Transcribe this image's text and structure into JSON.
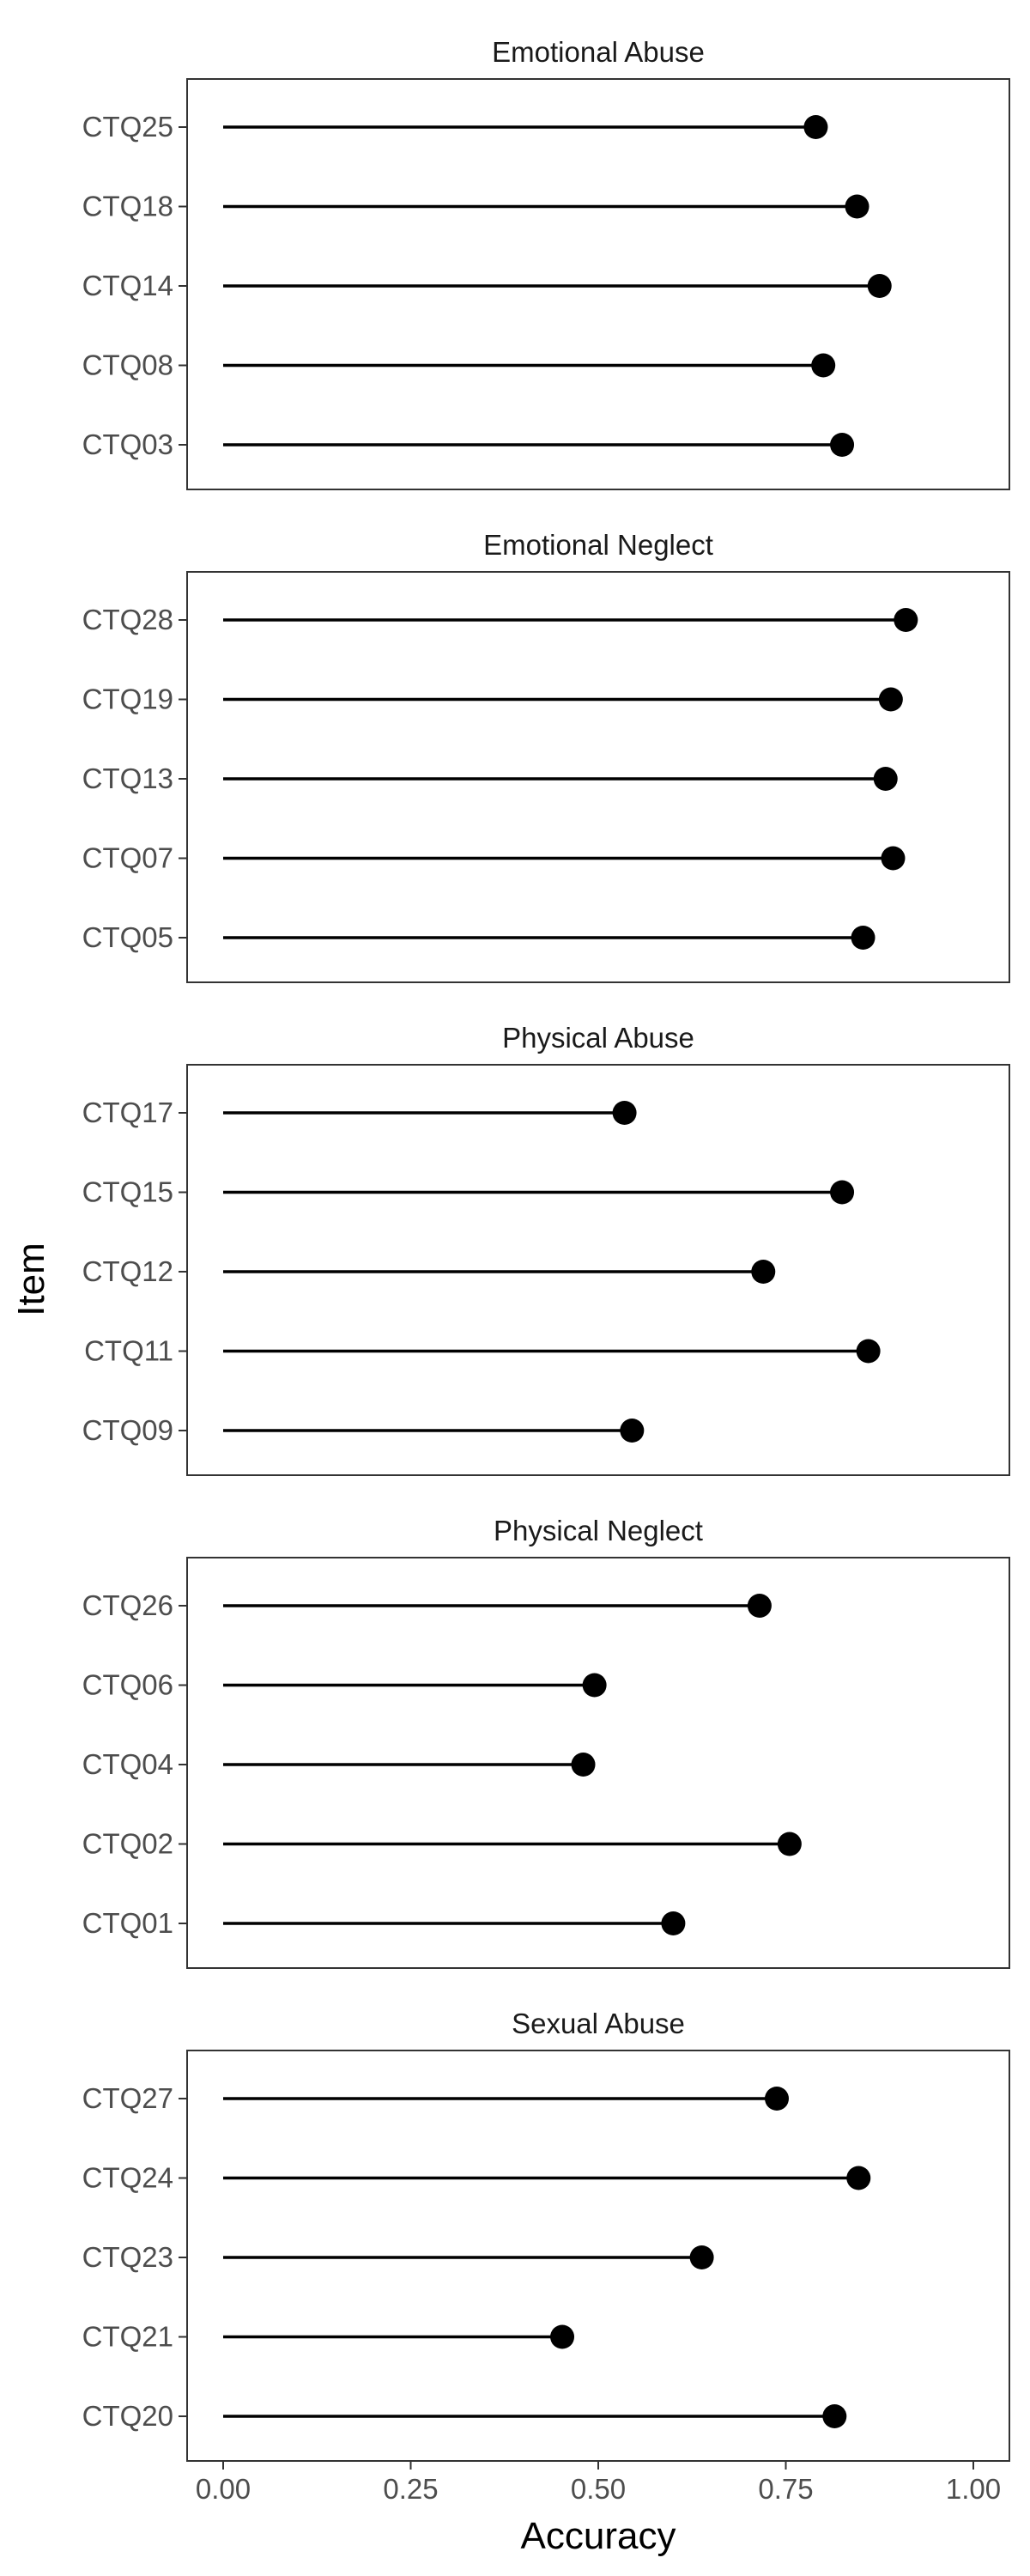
{
  "chart_data": {
    "type": "lollipop",
    "xlabel": "Accuracy",
    "ylabel": "Item",
    "xlim": [
      0,
      1
    ],
    "xticks": [
      0.0,
      0.25,
      0.5,
      0.75,
      1.0
    ],
    "xtick_labels": [
      "0.00",
      "0.25",
      "0.50",
      "0.75",
      "1.00"
    ],
    "grid": false,
    "colors": {
      "line": "#000000",
      "point": "#000000",
      "panel_border": "#333333"
    },
    "panels": [
      {
        "title": "Emotional Abuse",
        "categories": [
          "CTQ25",
          "CTQ18",
          "CTQ14",
          "CTQ08",
          "CTQ03"
        ],
        "values": [
          0.79,
          0.845,
          0.875,
          0.8,
          0.825
        ]
      },
      {
        "title": "Emotional Neglect",
        "categories": [
          "CTQ28",
          "CTQ19",
          "CTQ13",
          "CTQ07",
          "CTQ05"
        ],
        "values": [
          0.91,
          0.89,
          0.883,
          0.893,
          0.853
        ]
      },
      {
        "title": "Physical Abuse",
        "categories": [
          "CTQ17",
          "CTQ15",
          "CTQ12",
          "CTQ11",
          "CTQ09"
        ],
        "values": [
          0.535,
          0.825,
          0.72,
          0.86,
          0.545
        ]
      },
      {
        "title": "Physical Neglect",
        "categories": [
          "CTQ26",
          "CTQ06",
          "CTQ04",
          "CTQ02",
          "CTQ01"
        ],
        "values": [
          0.715,
          0.495,
          0.48,
          0.755,
          0.6
        ]
      },
      {
        "title": "Sexual Abuse",
        "categories": [
          "CTQ27",
          "CTQ24",
          "CTQ23",
          "CTQ21",
          "CTQ20"
        ],
        "values": [
          0.738,
          0.847,
          0.638,
          0.452,
          0.815
        ]
      }
    ]
  }
}
